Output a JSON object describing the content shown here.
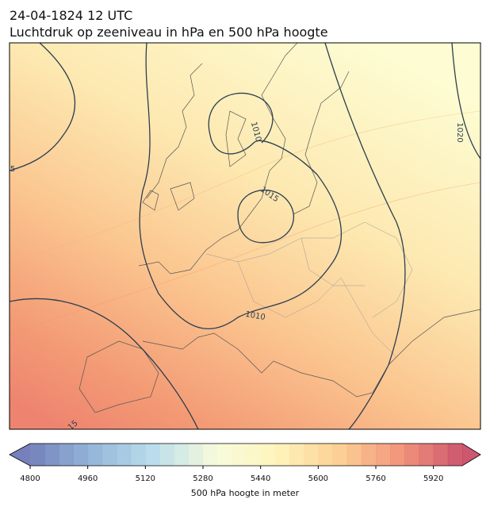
{
  "title": "24-04-1824 12 UTC",
  "subtitle": "Luchtdruk op zeeniveau in hPa en 500 hPa hoogte",
  "map": {
    "contour_labels": [
      "1010",
      "1015",
      "1020",
      "1010",
      "5",
      "15"
    ]
  },
  "colorbar": {
    "label": "500 hPa hoogte in meter",
    "range": [
      4800,
      6000
    ],
    "step": 40,
    "ticks": [
      4800,
      4960,
      5120,
      5280,
      5440,
      5600,
      5760,
      5920
    ]
  }
}
